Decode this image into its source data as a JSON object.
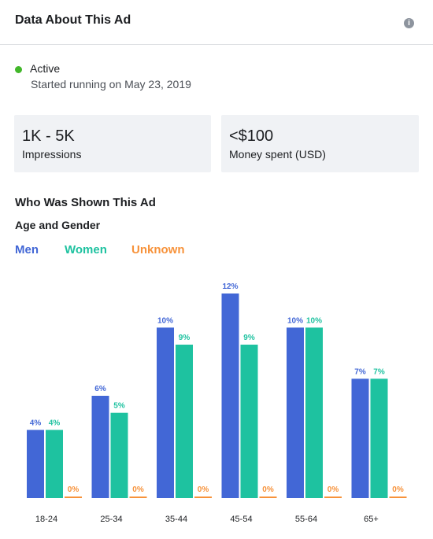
{
  "header": {
    "title": "Data About This Ad",
    "info_icon": "info-icon",
    "info_glyph": "i"
  },
  "status": {
    "label": "Active",
    "started": "Started running on May 23, 2019",
    "color": "#42b72a"
  },
  "stats": {
    "impressions": {
      "value": "1K - 5K",
      "label": "Impressions"
    },
    "spend": {
      "value": "<$100",
      "label": "Money spent (USD)"
    }
  },
  "audience": {
    "section_title": "Who Was Shown This Ad",
    "subtitle": "Age and Gender",
    "legend": [
      {
        "name": "Men",
        "color": "#4267d6"
      },
      {
        "name": "Women",
        "color": "#1ec2a0"
      },
      {
        "name": "Unknown",
        "color": "#f7923a"
      }
    ]
  },
  "chart_data": {
    "type": "bar",
    "categories": [
      "18-24",
      "25-34",
      "35-44",
      "45-54",
      "55-64",
      "65+"
    ],
    "series": [
      {
        "name": "Men",
        "values": [
          4,
          6,
          10,
          12,
          10,
          7
        ],
        "labels": [
          "4%",
          "6%",
          "10%",
          "12%",
          "10%",
          "7%"
        ],
        "color": "#4267d6"
      },
      {
        "name": "Women",
        "values": [
          4,
          5,
          9,
          9,
          10,
          7
        ],
        "labels": [
          "4%",
          "5%",
          "9%",
          "9%",
          "10%",
          "7%"
        ],
        "color": "#1ec2a0"
      },
      {
        "name": "Unknown",
        "values": [
          0,
          0,
          0,
          0,
          0,
          0
        ],
        "labels": [
          "0%",
          "0%",
          "0%",
          "0%",
          "0%",
          "0%"
        ],
        "color": "#f7923a"
      }
    ],
    "ylim": [
      0,
      12
    ],
    "grid": false,
    "legend_position": "top-left"
  }
}
